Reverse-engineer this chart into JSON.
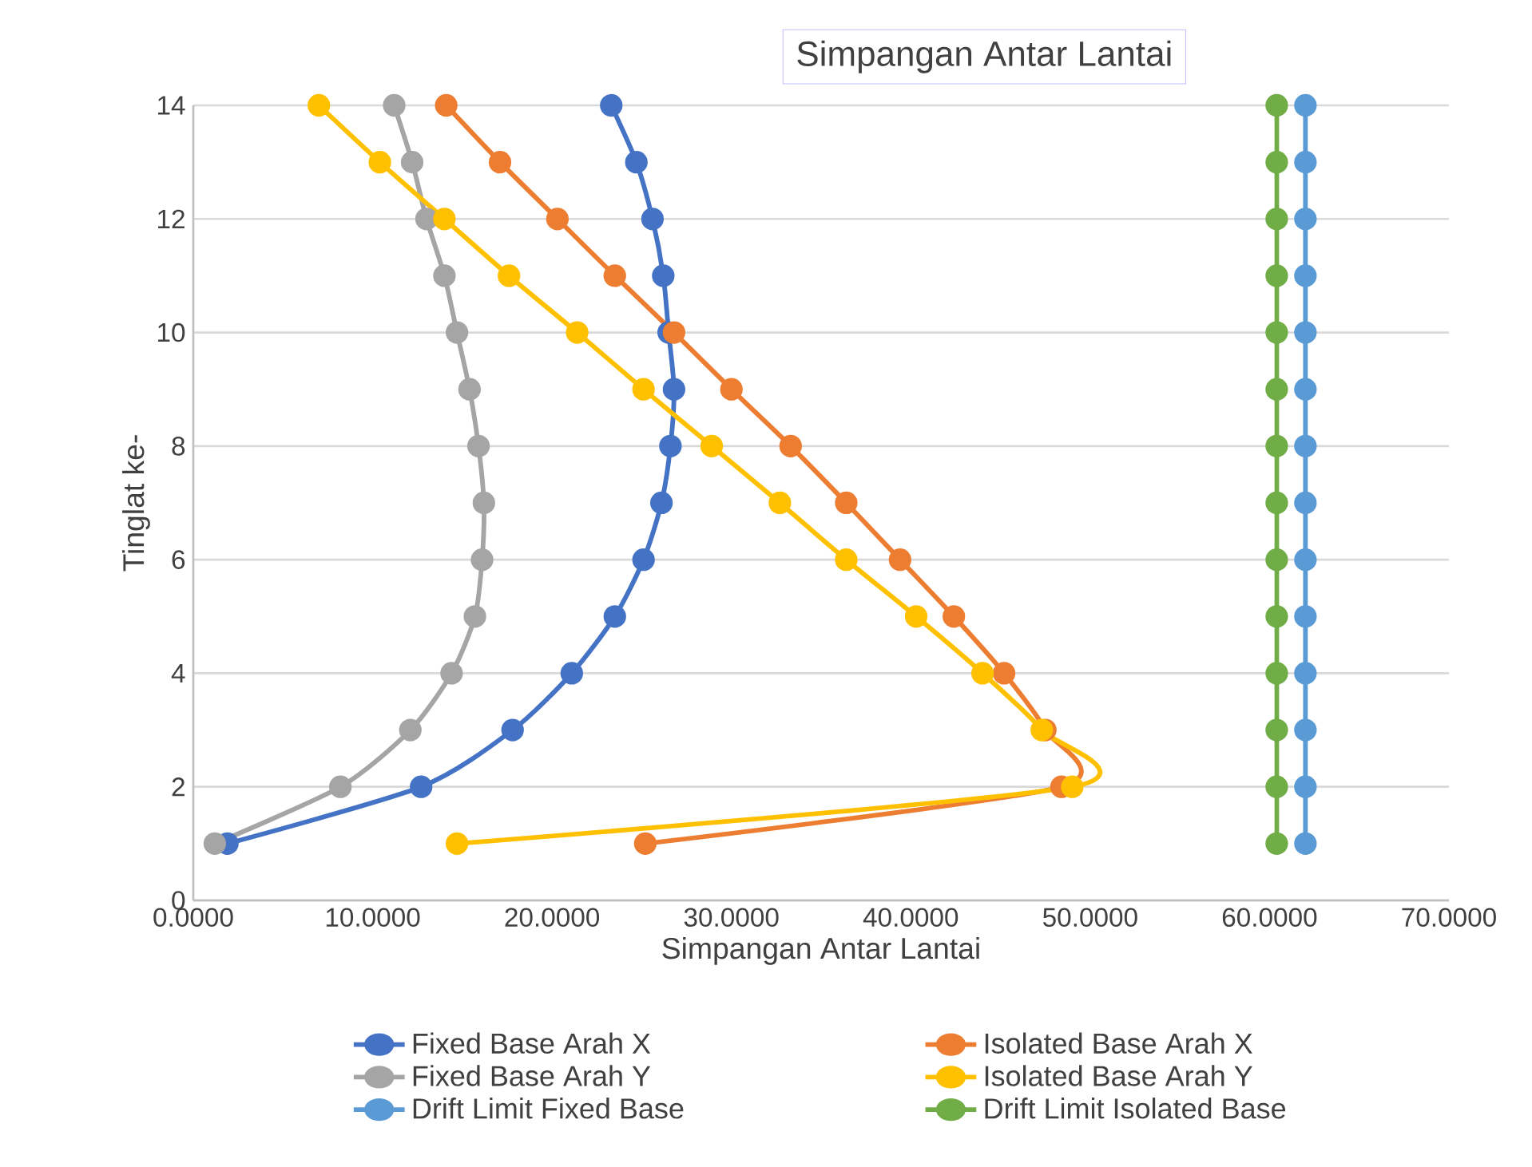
{
  "chart_data": {
    "type": "line",
    "title": "Simpangan Antar Lantai",
    "xlabel": "Simpangan Antar Lantai",
    "ylabel": "Tinglat ke-",
    "xlim": [
      0,
      70
    ],
    "ylim": [
      0,
      14
    ],
    "xticks": [
      {
        "value": 0,
        "label": "0.0000"
      },
      {
        "value": 10,
        "label": "10.0000"
      },
      {
        "value": 20,
        "label": "20.0000"
      },
      {
        "value": 30,
        "label": "30.0000"
      },
      {
        "value": 40,
        "label": "40.0000"
      },
      {
        "value": 50,
        "label": "50.0000"
      },
      {
        "value": 60,
        "label": "60.0000"
      },
      {
        "value": 70,
        "label": "70.0000"
      }
    ],
    "yticks": [
      0,
      2,
      4,
      6,
      8,
      10,
      12,
      14
    ],
    "grid": "y",
    "legend": "bottom",
    "marker": "circle",
    "line_style": "solid",
    "series": [
      {
        "name": "Fixed Base Arah X",
        "color": "#4472c4",
        "x": [
          1.9,
          12.7,
          17.8,
          21.1,
          23.5,
          25.1,
          26.1,
          26.6,
          26.8,
          26.5,
          26.2,
          25.6,
          24.7,
          23.3
        ],
        "values": [
          1,
          2,
          3,
          4,
          5,
          6,
          7,
          8,
          9,
          10,
          11,
          12,
          13,
          14
        ]
      },
      {
        "name": "Isolated Base Arah X",
        "color": "#ed7d31",
        "x": [
          25.2,
          48.4,
          47.5,
          45.2,
          42.4,
          39.4,
          36.4,
          33.3,
          30.0,
          26.8,
          23.5,
          20.3,
          17.1,
          14.1
        ],
        "values": [
          1,
          2,
          3,
          4,
          5,
          6,
          7,
          8,
          9,
          10,
          11,
          12,
          13,
          14
        ]
      },
      {
        "name": "Fixed Base Arah Y",
        "color": "#a5a5a5",
        "x": [
          1.2,
          8.2,
          12.1,
          14.4,
          15.7,
          16.1,
          16.2,
          15.9,
          15.4,
          14.7,
          14.0,
          13.0,
          12.2,
          11.2
        ],
        "values": [
          1,
          2,
          3,
          4,
          5,
          6,
          7,
          8,
          9,
          10,
          11,
          12,
          13,
          14
        ]
      },
      {
        "name": "Isolated Base Arah Y",
        "color": "#ffc000",
        "x": [
          14.7,
          49.0,
          47.3,
          44.0,
          40.3,
          36.4,
          32.7,
          28.9,
          25.1,
          21.4,
          17.6,
          14.0,
          10.4,
          7.0
        ],
        "values": [
          1,
          2,
          3,
          4,
          5,
          6,
          7,
          8,
          9,
          10,
          11,
          12,
          13,
          14
        ]
      },
      {
        "name": "Drift Limit Fixed Base",
        "color": "#5b9bd5",
        "x": [
          62,
          62,
          62,
          62,
          62,
          62,
          62,
          62,
          62,
          62,
          62,
          62,
          62,
          62
        ],
        "values": [
          1,
          2,
          3,
          4,
          5,
          6,
          7,
          8,
          9,
          10,
          11,
          12,
          13,
          14
        ]
      },
      {
        "name": "Drift Limit Isolated Base",
        "color": "#70ad47",
        "x": [
          60.4,
          60.4,
          60.4,
          60.4,
          60.4,
          60.4,
          60.4,
          60.4,
          60.4,
          60.4,
          60.4,
          60.4,
          60.4,
          60.4
        ],
        "values": [
          1,
          2,
          3,
          4,
          5,
          6,
          7,
          8,
          9,
          10,
          11,
          12,
          13,
          14
        ]
      }
    ]
  }
}
